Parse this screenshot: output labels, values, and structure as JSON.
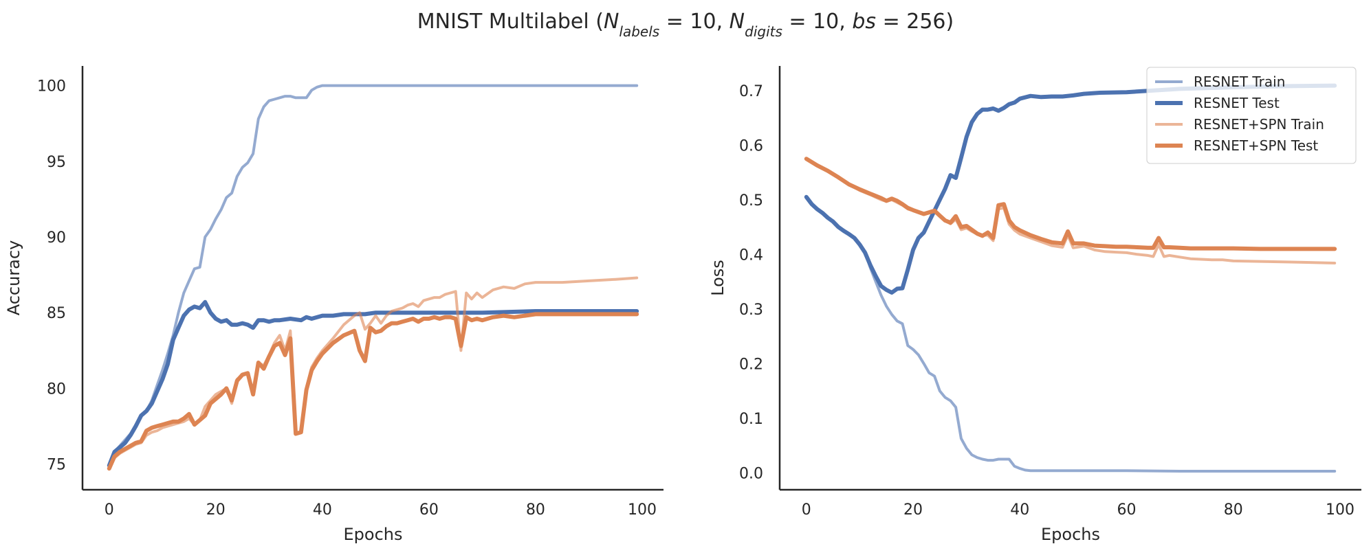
{
  "title": {
    "prefix": "MNIST Multilabel (",
    "n": "N",
    "labels_sub": "labels",
    "eq1": " = 10, ",
    "digits_sub": "digits",
    "eq2": " = 10, ",
    "bs": "bs",
    "eq3": " = 256)"
  },
  "colors": {
    "blue": "#4c72b0",
    "orange": "#dd8452"
  },
  "chart_data": [
    {
      "type": "line",
      "xlabel": "Epochs",
      "ylabel": "Accuracy",
      "xlim": [
        -5,
        104
      ],
      "ylim": [
        73.3,
        101.3
      ],
      "xticks": [
        0,
        20,
        40,
        60,
        80,
        100
      ],
      "yticks": [
        75,
        80,
        85,
        90,
        95,
        100
      ],
      "grid": false,
      "series": [
        {
          "name": "RESNET Train",
          "color": "#4c72b0",
          "alpha": 0.6,
          "width": 4,
          "x": [
            0,
            1,
            2,
            3,
            4,
            5,
            6,
            7,
            8,
            9,
            10,
            11,
            12,
            13,
            14,
            15,
            16,
            17,
            18,
            19,
            20,
            21,
            22,
            23,
            24,
            25,
            26,
            27,
            28,
            29,
            30,
            31,
            32,
            33,
            34,
            35,
            36,
            37,
            38,
            39,
            40,
            42,
            45,
            50,
            60,
            70,
            80,
            90,
            99
          ],
          "y": [
            75.0,
            75.8,
            76.2,
            76.6,
            77.0,
            77.6,
            78.2,
            78.5,
            79.2,
            80.2,
            81.2,
            82.3,
            83.5,
            85.0,
            86.3,
            87.1,
            87.9,
            88.0,
            90.0,
            90.5,
            91.2,
            91.8,
            92.6,
            92.9,
            94.0,
            94.6,
            94.9,
            95.5,
            97.8,
            98.6,
            99.0,
            99.1,
            99.2,
            99.3,
            99.3,
            99.2,
            99.2,
            99.2,
            99.7,
            99.9,
            100.0,
            100.0,
            100.0,
            100.0,
            100.0,
            100.0,
            100.0,
            100.0,
            100.0
          ]
        },
        {
          "name": "RESNET Test",
          "color": "#4c72b0",
          "alpha": 1,
          "width": 6,
          "x": [
            0,
            1,
            2,
            3,
            4,
            5,
            6,
            7,
            8,
            9,
            10,
            11,
            12,
            13,
            14,
            15,
            16,
            17,
            18,
            19,
            20,
            21,
            22,
            23,
            24,
            25,
            26,
            27,
            28,
            29,
            30,
            31,
            32,
            34,
            36,
            37,
            38,
            40,
            42,
            44,
            46,
            48,
            50,
            55,
            60,
            70,
            80,
            90,
            99
          ],
          "y": [
            74.9,
            75.8,
            76.1,
            76.4,
            76.9,
            77.5,
            78.2,
            78.5,
            79.0,
            79.8,
            80.6,
            81.6,
            83.2,
            84.0,
            84.8,
            85.2,
            85.4,
            85.3,
            85.7,
            85.0,
            84.6,
            84.4,
            84.5,
            84.2,
            84.2,
            84.3,
            84.2,
            84.0,
            84.5,
            84.5,
            84.4,
            84.5,
            84.5,
            84.6,
            84.5,
            84.7,
            84.6,
            84.8,
            84.8,
            84.9,
            84.9,
            84.9,
            85.0,
            85.0,
            85.0,
            85.0,
            85.1,
            85.1,
            85.1
          ]
        },
        {
          "name": "RESNET+SPN Train",
          "color": "#dd8452",
          "alpha": 0.6,
          "width": 4,
          "x": [
            0,
            1,
            2,
            3,
            4,
            5,
            6,
            7,
            8,
            9,
            10,
            11,
            12,
            13,
            14,
            15,
            16,
            17,
            18,
            19,
            20,
            21,
            22,
            23,
            24,
            25,
            26,
            27,
            28,
            29,
            30,
            31,
            32,
            33,
            34,
            35,
            36,
            37,
            38,
            39,
            40,
            42,
            44,
            46,
            47,
            48,
            49,
            50,
            51,
            52,
            53,
            54,
            55,
            56,
            57,
            58,
            59,
            60,
            61,
            62,
            63,
            64,
            65,
            66,
            67,
            68,
            69,
            70,
            72,
            74,
            76,
            78,
            80,
            85,
            90,
            95,
            99
          ],
          "y": [
            74.7,
            75.4,
            75.7,
            75.9,
            76.1,
            76.3,
            76.4,
            76.9,
            77.1,
            77.2,
            77.4,
            77.5,
            77.6,
            77.7,
            77.8,
            78.0,
            77.6,
            77.9,
            78.8,
            79.2,
            79.6,
            79.8,
            80.0,
            79.0,
            80.6,
            80.9,
            81.0,
            79.8,
            81.7,
            81.5,
            82.2,
            83.0,
            83.5,
            82.5,
            83.8,
            77.0,
            77.1,
            80.0,
            81.4,
            82.0,
            82.5,
            83.3,
            84.2,
            84.8,
            85.0,
            83.9,
            84.3,
            84.8,
            84.3,
            84.8,
            85.1,
            85.2,
            85.3,
            85.5,
            85.6,
            85.4,
            85.8,
            85.9,
            86.0,
            86.0,
            86.2,
            86.3,
            86.4,
            82.5,
            86.3,
            85.9,
            86.3,
            86.0,
            86.5,
            86.7,
            86.6,
            86.9,
            87.0,
            87.0,
            87.1,
            87.2,
            87.3
          ]
        },
        {
          "name": "RESNET+SPN Test",
          "color": "#dd8452",
          "alpha": 1,
          "width": 6,
          "x": [
            0,
            1,
            2,
            3,
            4,
            5,
            6,
            7,
            8,
            9,
            10,
            11,
            12,
            13,
            14,
            15,
            16,
            17,
            18,
            19,
            20,
            21,
            22,
            23,
            24,
            25,
            26,
            27,
            28,
            29,
            30,
            31,
            32,
            33,
            34,
            35,
            36,
            37,
            38,
            39,
            40,
            42,
            44,
            46,
            47,
            48,
            49,
            50,
            51,
            52,
            53,
            54,
            55,
            56,
            57,
            58,
            59,
            60,
            61,
            62,
            63,
            64,
            65,
            66,
            67,
            68,
            69,
            70,
            72,
            74,
            76,
            78,
            80,
            85,
            90,
            95,
            99
          ],
          "y": [
            74.7,
            75.5,
            75.8,
            76.0,
            76.2,
            76.4,
            76.5,
            77.2,
            77.4,
            77.5,
            77.6,
            77.7,
            77.8,
            77.8,
            78.0,
            78.3,
            77.6,
            77.9,
            78.2,
            79.0,
            79.3,
            79.6,
            80.0,
            79.2,
            80.5,
            80.9,
            81.0,
            79.6,
            81.7,
            81.3,
            82.1,
            82.8,
            83.0,
            82.2,
            83.3,
            77.0,
            77.1,
            79.9,
            81.2,
            81.8,
            82.3,
            83.0,
            83.5,
            83.8,
            82.5,
            81.8,
            84.0,
            83.7,
            83.8,
            84.1,
            84.3,
            84.3,
            84.4,
            84.5,
            84.6,
            84.4,
            84.6,
            84.6,
            84.7,
            84.6,
            84.7,
            84.7,
            84.6,
            82.8,
            84.7,
            84.5,
            84.6,
            84.5,
            84.7,
            84.8,
            84.7,
            84.8,
            84.9,
            84.9,
            84.9,
            84.9,
            84.9
          ]
        }
      ]
    },
    {
      "type": "line",
      "xlabel": "Epochs",
      "ylabel": "Loss",
      "xlim": [
        -5,
        104
      ],
      "ylim": [
        -0.031,
        0.745
      ],
      "xticks": [
        0,
        20,
        40,
        60,
        80,
        100
      ],
      "yticks": [
        0.0,
        0.1,
        0.2,
        0.3,
        0.4,
        0.5,
        0.6,
        0.7
      ],
      "ytick_labels": [
        "0.0",
        "0.1",
        "0.2",
        "0.3",
        "0.4",
        "0.5",
        "0.6",
        "0.7"
      ],
      "grid": false,
      "legend": {
        "placement": "top-right",
        "entries": [
          "RESNET Train",
          "RESNET Test",
          "RESNET+SPN Train",
          "RESNET+SPN Test"
        ]
      },
      "series": [
        {
          "name": "RESNET Train",
          "color": "#4c72b0",
          "alpha": 0.6,
          "width": 4,
          "x": [
            0,
            1,
            2,
            3,
            4,
            5,
            6,
            7,
            8,
            9,
            10,
            11,
            12,
            13,
            14,
            15,
            16,
            17,
            18,
            19,
            20,
            21,
            22,
            23,
            24,
            25,
            26,
            27,
            28,
            29,
            30,
            31,
            32,
            33,
            34,
            35,
            36,
            37,
            38,
            39,
            40,
            41,
            42,
            44,
            46,
            50,
            60,
            70,
            80,
            90,
            99
          ],
          "y": [
            0.505,
            0.492,
            0.483,
            0.476,
            0.467,
            0.46,
            0.45,
            0.443,
            0.437,
            0.43,
            0.418,
            0.405,
            0.375,
            0.35,
            0.325,
            0.305,
            0.29,
            0.278,
            0.273,
            0.233,
            0.226,
            0.216,
            0.2,
            0.183,
            0.177,
            0.15,
            0.138,
            0.132,
            0.12,
            0.063,
            0.045,
            0.033,
            0.028,
            0.025,
            0.023,
            0.023,
            0.025,
            0.025,
            0.025,
            0.012,
            0.008,
            0.005,
            0.004,
            0.004,
            0.004,
            0.004,
            0.004,
            0.003,
            0.003,
            0.003,
            0.003
          ]
        },
        {
          "name": "RESNET Test",
          "color": "#4c72b0",
          "alpha": 1,
          "width": 6,
          "x": [
            0,
            1,
            2,
            3,
            4,
            5,
            6,
            7,
            8,
            9,
            10,
            11,
            12,
            13,
            14,
            15,
            16,
            17,
            18,
            19,
            20,
            21,
            22,
            23,
            24,
            25,
            26,
            27,
            28,
            29,
            30,
            31,
            32,
            33,
            34,
            35,
            36,
            37,
            38,
            39,
            40,
            42,
            44,
            46,
            48,
            50,
            52,
            55,
            60,
            65,
            70,
            80,
            90,
            99
          ],
          "y": [
            0.505,
            0.492,
            0.483,
            0.476,
            0.467,
            0.46,
            0.45,
            0.443,
            0.437,
            0.43,
            0.418,
            0.403,
            0.38,
            0.36,
            0.342,
            0.335,
            0.33,
            0.337,
            0.338,
            0.372,
            0.408,
            0.43,
            0.44,
            0.46,
            0.48,
            0.5,
            0.52,
            0.545,
            0.54,
            0.577,
            0.615,
            0.642,
            0.657,
            0.665,
            0.665,
            0.667,
            0.663,
            0.668,
            0.675,
            0.678,
            0.685,
            0.69,
            0.688,
            0.689,
            0.689,
            0.691,
            0.694,
            0.696,
            0.697,
            0.7,
            0.703,
            0.706,
            0.708,
            0.709
          ]
        },
        {
          "name": "RESNET+SPN Train",
          "color": "#dd8452",
          "alpha": 0.6,
          "width": 4,
          "x": [
            0,
            2,
            4,
            6,
            8,
            10,
            12,
            14,
            15,
            16,
            17,
            18,
            19,
            20,
            22,
            24,
            25,
            26,
            27,
            28,
            29,
            30,
            31,
            32,
            33,
            34,
            35,
            36,
            37,
            38,
            39,
            40,
            42,
            44,
            46,
            48,
            49,
            50,
            52,
            54,
            56,
            58,
            60,
            62,
            64,
            65,
            66,
            67,
            68,
            70,
            72,
            74,
            76,
            78,
            80,
            85,
            90,
            95,
            99
          ],
          "y": [
            0.575,
            0.563,
            0.553,
            0.541,
            0.528,
            0.517,
            0.509,
            0.5,
            0.497,
            0.5,
            0.495,
            0.49,
            0.483,
            0.48,
            0.473,
            0.478,
            0.47,
            0.462,
            0.456,
            0.464,
            0.445,
            0.448,
            0.442,
            0.437,
            0.435,
            0.435,
            0.425,
            0.483,
            0.485,
            0.455,
            0.444,
            0.437,
            0.43,
            0.423,
            0.416,
            0.413,
            0.435,
            0.412,
            0.415,
            0.408,
            0.405,
            0.404,
            0.403,
            0.4,
            0.398,
            0.396,
            0.418,
            0.396,
            0.398,
            0.395,
            0.392,
            0.391,
            0.39,
            0.39,
            0.388,
            0.387,
            0.386,
            0.385,
            0.384
          ]
        },
        {
          "name": "RESNET+SPN Test",
          "color": "#dd8452",
          "alpha": 1,
          "width": 6,
          "x": [
            0,
            2,
            4,
            6,
            8,
            10,
            12,
            14,
            15,
            16,
            17,
            18,
            19,
            20,
            22,
            24,
            25,
            26,
            27,
            28,
            29,
            30,
            31,
            32,
            33,
            34,
            35,
            36,
            37,
            38,
            39,
            40,
            42,
            44,
            46,
            48,
            49,
            50,
            52,
            54,
            56,
            58,
            60,
            62,
            64,
            65,
            66,
            67,
            68,
            70,
            72,
            74,
            76,
            78,
            80,
            85,
            90,
            95,
            99
          ],
          "y": [
            0.575,
            0.563,
            0.553,
            0.541,
            0.528,
            0.519,
            0.511,
            0.503,
            0.498,
            0.502,
            0.498,
            0.492,
            0.485,
            0.481,
            0.474,
            0.48,
            0.471,
            0.462,
            0.458,
            0.47,
            0.45,
            0.452,
            0.445,
            0.438,
            0.434,
            0.44,
            0.43,
            0.49,
            0.492,
            0.462,
            0.45,
            0.444,
            0.435,
            0.428,
            0.422,
            0.42,
            0.442,
            0.42,
            0.42,
            0.416,
            0.415,
            0.414,
            0.414,
            0.413,
            0.412,
            0.412,
            0.43,
            0.413,
            0.413,
            0.412,
            0.411,
            0.411,
            0.411,
            0.411,
            0.411,
            0.41,
            0.41,
            0.41,
            0.41
          ]
        }
      ]
    }
  ]
}
